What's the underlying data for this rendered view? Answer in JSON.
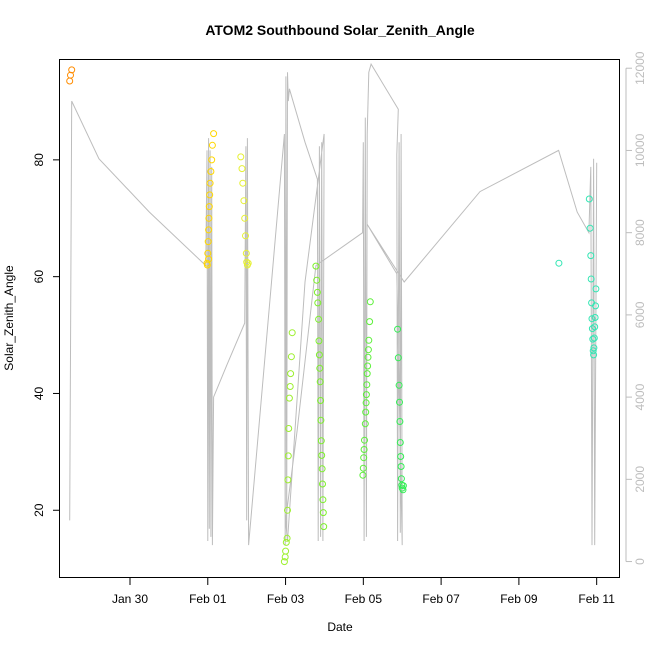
{
  "chart_data": {
    "type": "scatter",
    "title": "ATOM2 Southbound Solar_Zenith_Angle",
    "xlabel": "Date",
    "ylabel": "Solar_Zenith_Angle",
    "x_unit": "days",
    "x_ticks": [
      {
        "label": "Jan 30",
        "value": 30
      },
      {
        "label": "Feb 01",
        "value": 32
      },
      {
        "label": "Feb 03",
        "value": 34
      },
      {
        "label": "Feb 05",
        "value": 36
      },
      {
        "label": "Feb 07",
        "value": 38
      },
      {
        "label": "Feb 09",
        "value": 40
      },
      {
        "label": "Feb 11",
        "value": 42
      }
    ],
    "y_ticks": [
      20,
      40,
      60,
      80
    ],
    "y2_ticks": [
      0,
      2000,
      4000,
      6000,
      8000,
      10000,
      12000
    ],
    "xlim": [
      28.2,
      42.6
    ],
    "ylim": [
      8.4,
      97.1
    ],
    "y2lim": [
      -400,
      12200
    ],
    "colors": {
      "altitude_line": "#bdbdbd",
      "axis": "#000000",
      "right_axis": "#bdbdbd"
    },
    "series": [
      {
        "color": "#ff8c00",
        "points": [
          [
            28.45,
            93.5
          ],
          [
            28.47,
            94.5
          ],
          [
            28.5,
            95.4
          ]
        ]
      },
      {
        "color": "#ffd700",
        "points": [
          [
            31.99,
            62
          ],
          [
            32.0,
            64
          ],
          [
            32.01,
            66
          ],
          [
            32.02,
            68
          ],
          [
            32.03,
            70
          ],
          [
            32.04,
            72
          ],
          [
            32.05,
            74
          ],
          [
            32.06,
            76
          ],
          [
            32.08,
            78
          ],
          [
            32.1,
            80
          ],
          [
            32.12,
            82.5
          ],
          [
            32.15,
            84.5
          ],
          [
            31.98,
            62.3
          ],
          [
            32.02,
            63
          ]
        ]
      },
      {
        "color": "#e6f032",
        "points": [
          [
            32.85,
            80.5
          ],
          [
            32.88,
            78.5
          ],
          [
            32.9,
            76
          ],
          [
            32.93,
            73
          ],
          [
            32.95,
            70
          ],
          [
            32.97,
            67
          ],
          [
            32.99,
            64
          ],
          [
            33.0,
            62.5
          ],
          [
            33.02,
            62
          ],
          [
            33.04,
            62.3
          ]
        ]
      },
      {
        "color": "#9df02f",
        "points": [
          [
            33.97,
            11.2
          ],
          [
            33.99,
            12
          ],
          [
            34.0,
            13
          ],
          [
            34.02,
            14.5
          ],
          [
            34.04,
            15.2
          ],
          [
            34.05,
            20
          ],
          [
            34.06,
            25.2
          ],
          [
            34.07,
            29.3
          ],
          [
            34.08,
            34
          ],
          [
            34.1,
            39.2
          ],
          [
            34.12,
            41.2
          ],
          [
            34.13,
            43.4
          ],
          [
            34.15,
            46.3
          ],
          [
            34.17,
            50.4
          ]
        ]
      },
      {
        "color": "#7cf02a",
        "points": [
          [
            34.78,
            61.8
          ],
          [
            34.8,
            59.4
          ],
          [
            34.82,
            57.3
          ],
          [
            34.83,
            55.5
          ],
          [
            34.85,
            52.7
          ],
          [
            34.86,
            49
          ],
          [
            34.87,
            46.6
          ],
          [
            34.88,
            44.3
          ],
          [
            34.89,
            42
          ],
          [
            34.9,
            38.8
          ],
          [
            34.91,
            35.4
          ],
          [
            34.92,
            31.9
          ],
          [
            34.93,
            29.4
          ],
          [
            34.94,
            27.1
          ],
          [
            34.95,
            24.5
          ],
          [
            34.96,
            21.8
          ],
          [
            34.97,
            19.6
          ],
          [
            34.98,
            17.2
          ]
        ]
      },
      {
        "color": "#5df03a",
        "points": [
          [
            35.99,
            26
          ],
          [
            36.0,
            27.2
          ],
          [
            36.01,
            29
          ],
          [
            36.02,
            30.4
          ],
          [
            36.03,
            32
          ],
          [
            36.05,
            34.8
          ],
          [
            36.06,
            36.8
          ],
          [
            36.07,
            38.4
          ],
          [
            36.08,
            39.8
          ],
          [
            36.09,
            41.5
          ],
          [
            36.1,
            43.4
          ],
          [
            36.11,
            44.7
          ],
          [
            36.12,
            46.2
          ],
          [
            36.13,
            47.5
          ],
          [
            36.14,
            49.1
          ],
          [
            36.16,
            52.3
          ],
          [
            36.18,
            55.7
          ]
        ]
      },
      {
        "color": "#33ee55",
        "points": [
          [
            36.88,
            51
          ],
          [
            36.9,
            46.1
          ],
          [
            36.92,
            41.4
          ],
          [
            36.93,
            38.5
          ],
          [
            36.94,
            35.2
          ],
          [
            36.95,
            31.6
          ],
          [
            36.96,
            29.2
          ],
          [
            36.97,
            27.5
          ],
          [
            36.98,
            25.4
          ],
          [
            36.99,
            24.3
          ],
          [
            37.0,
            23.8
          ],
          [
            37.02,
            23.5
          ],
          [
            37.03,
            24.2
          ]
        ]
      },
      {
        "color": "#33e6b4",
        "points": [
          [
            41.03,
            62.3
          ],
          [
            41.81,
            73.3
          ],
          [
            41.83,
            68.3
          ],
          [
            41.85,
            63.6
          ],
          [
            41.86,
            59.6
          ],
          [
            41.87,
            55.5
          ],
          [
            41.88,
            52.8
          ],
          [
            41.89,
            51.1
          ],
          [
            41.9,
            49.3
          ],
          [
            41.91,
            47.3
          ],
          [
            41.92,
            46.6
          ],
          [
            41.93,
            47.8
          ],
          [
            41.94,
            49.5
          ],
          [
            41.95,
            51.4
          ],
          [
            41.96,
            53
          ],
          [
            41.97,
            55
          ],
          [
            41.98,
            57.9
          ]
        ]
      }
    ],
    "altitude_line": [
      [
        28.45,
        1000
      ],
      [
        28.5,
        11200
      ],
      [
        29.2,
        9800
      ],
      [
        30.5,
        8500
      ],
      [
        31.95,
        7200
      ],
      [
        31.98,
        10000
      ],
      [
        32.0,
        500
      ],
      [
        32.02,
        10300
      ],
      [
        32.04,
        800
      ],
      [
        32.06,
        10000
      ],
      [
        32.08,
        600
      ],
      [
        32.1,
        9600
      ],
      [
        32.12,
        400
      ],
      [
        32.15,
        4000
      ],
      [
        32.5,
        4800
      ],
      [
        32.95,
        5800
      ],
      [
        32.98,
        10100
      ],
      [
        33.0,
        1000
      ],
      [
        33.02,
        10300
      ],
      [
        33.05,
        400
      ],
      [
        33.97,
        10400
      ],
      [
        33.99,
        400
      ],
      [
        34.01,
        11800
      ],
      [
        34.03,
        700
      ],
      [
        34.05,
        11900
      ],
      [
        34.07,
        11200
      ],
      [
        34.1,
        11500
      ],
      [
        34.5,
        10200
      ],
      [
        34.82,
        9300
      ],
      [
        34.84,
        500
      ],
      [
        34.87,
        10100
      ],
      [
        34.9,
        600
      ],
      [
        34.93,
        10200
      ],
      [
        34.96,
        500
      ],
      [
        34.99,
        10400
      ],
      [
        34.5,
        6800
      ],
      [
        34.05,
        500
      ],
      [
        34.0,
        1000
      ],
      [
        34.3,
        3200
      ],
      [
        34.78,
        7200
      ],
      [
        35.98,
        8000
      ],
      [
        36.0,
        10200
      ],
      [
        36.02,
        500
      ],
      [
        36.05,
        10800
      ],
      [
        36.08,
        600
      ],
      [
        36.1,
        10400
      ],
      [
        36.14,
        11900
      ],
      [
        36.2,
        12100
      ],
      [
        36.9,
        11000
      ],
      [
        36.86,
        9900
      ],
      [
        36.88,
        500
      ],
      [
        36.92,
        10200
      ],
      [
        36.95,
        700
      ],
      [
        36.97,
        10400
      ],
      [
        37.0,
        400
      ],
      [
        36.86,
        7000
      ],
      [
        36.1,
        8200
      ],
      [
        37.05,
        6800
      ],
      [
        39.0,
        9000
      ],
      [
        41.02,
        10000
      ],
      [
        41.5,
        8500
      ],
      [
        41.8,
        8000
      ],
      [
        41.85,
        9600
      ],
      [
        41.88,
        400
      ],
      [
        41.92,
        9800
      ],
      [
        41.95,
        400
      ],
      [
        42.0,
        9700
      ]
    ]
  }
}
